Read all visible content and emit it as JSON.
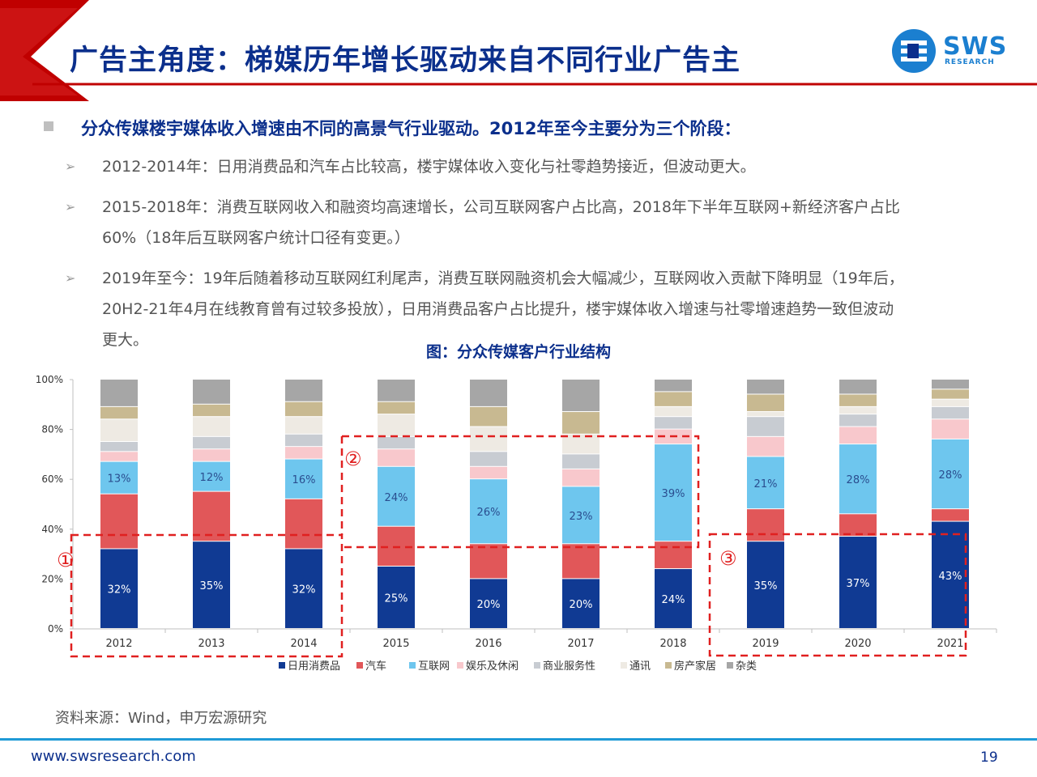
{
  "header": {
    "title": "广告主角度：梯媒历年增长驱动来自不同行业广告主",
    "logo_text": "SWS",
    "logo_subtext": "RESEARCH"
  },
  "bullets": {
    "main": "分众传媒楼宇媒体收入增速由不同的高景气行业驱动。2012年至今主要分为三个阶段：",
    "sub": [
      {
        "lines": [
          "2012-2014年：日用消费品和汽车占比较高，楼宇媒体收入变化与社零趋势接近，但波动更大。"
        ]
      },
      {
        "lines": [
          "2015-2018年：消费互联网收入和融资均高速增长，公司互联网客户占比高，2018年下半年互联网+新经济客户占比",
          "60%（18年后互联网客户统计口径有变更。）"
        ]
      },
      {
        "lines": [
          "2019年至今：19年后随着移动互联网红利尾声，消费互联网融资机会大幅减少，互联网收入贡献下降明显（19年后，",
          "20H2-21年4月在线教育曾有过较多投放），日用消费品客户占比提升，楼宇媒体收入增速与社零增速趋势一致但波动",
          "更大。"
        ]
      }
    ],
    "arrow_glyph": "➢"
  },
  "chart_title": "图：分众传媒客户行业结构",
  "stage_markers": [
    "①",
    "②",
    "③"
  ],
  "source": "资料来源：Wind，申万宏源研究",
  "footer": {
    "url": "www.swsresearch.com",
    "page": "19"
  },
  "colors": {
    "title_blue": "#0b2f8c",
    "header_red": "#c00000",
    "dashed_box": "#e02020",
    "series": [
      "#103a93",
      "#e15759",
      "#6ec6ee",
      "#f8c8cc",
      "#c8ccd2",
      "#eeeae3",
      "#c8b991",
      "#a6a6a6"
    ]
  },
  "chart_data": {
    "type": "bar",
    "stacked": true,
    "categories": [
      "2012",
      "2013",
      "2014",
      "2015",
      "2016",
      "2017",
      "2018",
      "2019",
      "2020",
      "2021"
    ],
    "ylim": [
      0,
      100
    ],
    "yticks": [
      "0%",
      "20%",
      "40%",
      "60%",
      "80%",
      "100%"
    ],
    "legend_position": "bottom",
    "series": [
      {
        "name": "日用消费品",
        "values": [
          32,
          35,
          32,
          25,
          20,
          20,
          24,
          35,
          37,
          43
        ],
        "labels": [
          "32%",
          "35%",
          "32%",
          "25%",
          "20%",
          "20%",
          "24%",
          "35%",
          "37%",
          "43%"
        ]
      },
      {
        "name": "汽车",
        "values": [
          22,
          20,
          20,
          16,
          14,
          14,
          11,
          13,
          9,
          5
        ]
      },
      {
        "name": "互联网",
        "values": [
          13,
          12,
          16,
          24,
          26,
          23,
          39,
          21,
          28,
          28
        ],
        "labels": [
          "13%",
          "12%",
          "16%",
          "24%",
          "26%",
          "23%",
          "39%",
          "21%",
          "28%",
          "28%"
        ]
      },
      {
        "name": "娱乐及休闲",
        "values": [
          4,
          5,
          5,
          7,
          5,
          7,
          6,
          8,
          7,
          8
        ]
      },
      {
        "name": "商业服务性",
        "values": [
          4,
          5,
          5,
          5,
          6,
          6,
          5,
          8,
          5,
          5
        ]
      },
      {
        "name": "通讯",
        "values": [
          9,
          8,
          7,
          9,
          10,
          8,
          4,
          2,
          3,
          3
        ]
      },
      {
        "name": "房产家居",
        "values": [
          5,
          5,
          6,
          5,
          8,
          9,
          6,
          7,
          5,
          4
        ]
      },
      {
        "name": "杂类",
        "values": [
          11,
          10,
          9,
          9,
          11,
          13,
          5,
          6,
          6,
          4
        ]
      }
    ]
  }
}
